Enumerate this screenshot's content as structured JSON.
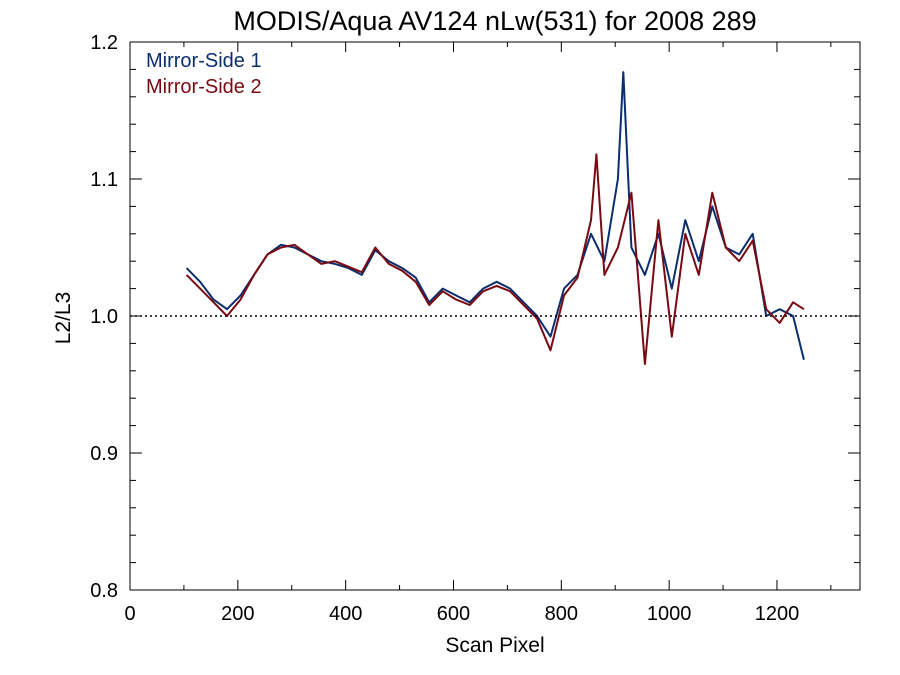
{
  "chart_data": {
    "type": "line",
    "title": "MODIS/Aqua AV124 nLw(531) for 2008 289",
    "xlabel": "Scan Pixel",
    "ylabel": "L2/L3",
    "xlim": [
      0,
      1354
    ],
    "ylim": [
      0.8,
      1.2
    ],
    "xticks": [
      0,
      200,
      400,
      600,
      800,
      1000,
      1200
    ],
    "xtick_labels": [
      "0",
      "200",
      "400",
      "600",
      "800",
      "1000",
      "1200"
    ],
    "yticks": [
      0.8,
      0.9,
      1.0,
      1.1,
      1.2
    ],
    "ytick_labels": [
      "0.8",
      "0.9",
      "1.0",
      "1.1",
      "1.2"
    ],
    "reference_line": 1.0,
    "grid": false,
    "legend_position": "top-left",
    "series": [
      {
        "name": "Mirror-Side 1",
        "color": "#0b2e6e",
        "x": [
          105,
          130,
          155,
          180,
          205,
          230,
          255,
          280,
          305,
          330,
          355,
          380,
          405,
          430,
          455,
          480,
          505,
          530,
          555,
          580,
          605,
          630,
          655,
          680,
          705,
          730,
          755,
          780,
          805,
          830,
          855,
          880,
          905,
          915,
          930,
          955,
          980,
          1005,
          1030,
          1055,
          1080,
          1105,
          1130,
          1155,
          1180,
          1205,
          1230,
          1250
        ],
        "y": [
          1.035,
          1.025,
          1.012,
          1.005,
          1.015,
          1.03,
          1.045,
          1.052,
          1.05,
          1.045,
          1.04,
          1.038,
          1.035,
          1.03,
          1.048,
          1.04,
          1.035,
          1.028,
          1.01,
          1.02,
          1.015,
          1.01,
          1.02,
          1.025,
          1.02,
          1.01,
          1.0,
          0.985,
          1.02,
          1.03,
          1.06,
          1.04,
          1.1,
          1.178,
          1.05,
          1.03,
          1.06,
          1.02,
          1.07,
          1.04,
          1.08,
          1.05,
          1.045,
          1.06,
          1.0,
          1.005,
          1.0,
          0.968
        ]
      },
      {
        "name": "Mirror-Side 2",
        "color": "#7a0a12",
        "x": [
          105,
          130,
          155,
          180,
          205,
          230,
          255,
          280,
          305,
          330,
          355,
          380,
          405,
          430,
          455,
          480,
          505,
          530,
          555,
          580,
          605,
          630,
          655,
          680,
          705,
          730,
          755,
          780,
          805,
          830,
          855,
          865,
          880,
          905,
          930,
          955,
          980,
          1005,
          1030,
          1055,
          1080,
          1105,
          1130,
          1155,
          1180,
          1205,
          1230,
          1250
        ],
        "y": [
          1.03,
          1.02,
          1.01,
          1.0,
          1.012,
          1.03,
          1.045,
          1.05,
          1.052,
          1.045,
          1.038,
          1.04,
          1.036,
          1.032,
          1.05,
          1.038,
          1.033,
          1.025,
          1.008,
          1.018,
          1.012,
          1.008,
          1.018,
          1.022,
          1.018,
          1.008,
          0.998,
          0.975,
          1.015,
          1.028,
          1.07,
          1.118,
          1.03,
          1.05,
          1.09,
          0.965,
          1.07,
          0.985,
          1.06,
          1.03,
          1.09,
          1.05,
          1.04,
          1.055,
          1.005,
          0.995,
          1.01,
          1.005
        ]
      }
    ]
  }
}
